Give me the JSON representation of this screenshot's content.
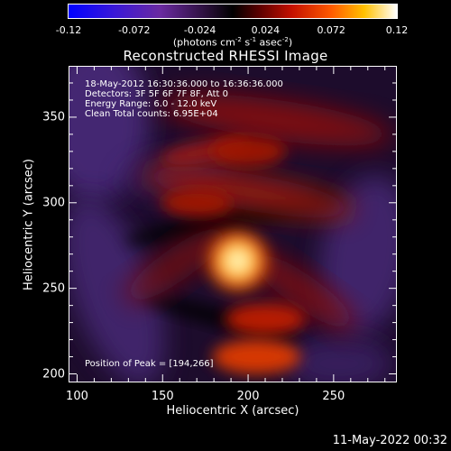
{
  "colorbar": {
    "ticks": [
      "-0.12",
      "-0.072",
      "-0.024",
      "0.024",
      "0.072",
      "0.12"
    ],
    "min": -0.12,
    "max": 0.12,
    "units_html": "(photons cm<sup>-2</sup> s<sup>-1</sup> asec<sup>-2</sup>)"
  },
  "chart_data": {
    "type": "heatmap",
    "title": "Reconstructed RHESSI Image",
    "xlabel": "Heliocentric X (arcsec)",
    "ylabel": "Heliocentric Y (arcsec)",
    "xlim": [
      95,
      287
    ],
    "ylim": [
      195,
      380
    ],
    "xticks": [
      100,
      150,
      200,
      250
    ],
    "yticks": [
      200,
      250,
      300,
      350
    ],
    "colormap": "hot-blue",
    "value_range": [
      -0.12,
      0.12
    ],
    "peak_position": [
      194,
      266
    ],
    "sources": [
      {
        "x": 194,
        "y": 266,
        "value": 0.118
      },
      {
        "x": 210,
        "y": 232,
        "value": 0.07
      },
      {
        "x": 205,
        "y": 210,
        "value": 0.085
      },
      {
        "x": 200,
        "y": 330,
        "value": 0.06
      },
      {
        "x": 170,
        "y": 300,
        "value": 0.05
      }
    ],
    "annotations": [
      "18-May-2012 16:30:36.000 to 16:36:36.000",
      "Detectors: 3F 5F 6F 7F 8F, Att 0",
      "Energy Range: 6.0 - 12.0 keV",
      "Clean    Total counts: 6.95E+04",
      "Position of Peak = [194,266]"
    ]
  },
  "footer": "11-May-2022 00:32"
}
